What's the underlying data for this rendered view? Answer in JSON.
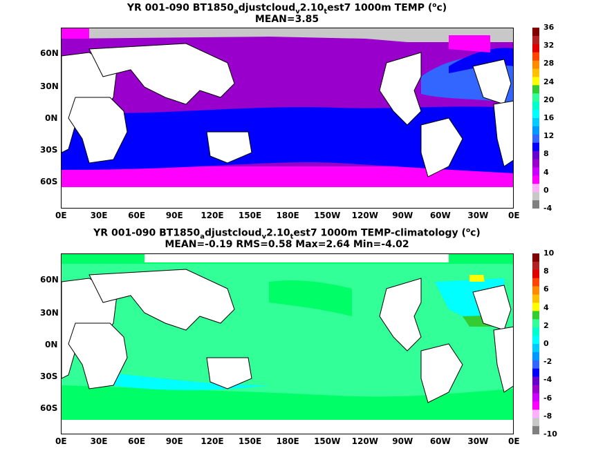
{
  "top": {
    "title_line1": {
      "pre": "YR 001-090 BT1850",
      "sub1": "a",
      "mid1": "djustcloud",
      "sub2": "v",
      "mid2": "2.10",
      "sub3": "t",
      "post": "est7 1000m TEMP (",
      "sup": "o",
      "end": "c)"
    },
    "title_line2": "MEAN=3.85",
    "lat_labels": [
      "60N",
      "30N",
      "0N",
      "30S",
      "60S"
    ],
    "lon_labels": [
      "0E",
      "30E",
      "60E",
      "90E",
      "120E",
      "150E",
      "180E",
      "150W",
      "120W",
      "90W",
      "60W",
      "30W",
      "0E"
    ],
    "colorbar_labels": [
      "36",
      "32",
      "28",
      "24",
      "20",
      "16",
      "12",
      "8",
      "4",
      "0",
      "-4"
    ]
  },
  "bottom": {
    "title_line1": {
      "pre": "YR 001-090 BT1850",
      "sub1": "a",
      "mid1": "djustcloud",
      "sub2": "v",
      "mid2": "2.10",
      "sub3": "t",
      "post": "est7 1000m TEMP-climatology (",
      "sup": "o",
      "end": "c)"
    },
    "title_line2": "MEAN=-0.19   RMS=0.58   Max=2.64   Min=-4.02",
    "lat_labels": [
      "60N",
      "30N",
      "0N",
      "30S",
      "60S"
    ],
    "lon_labels": [
      "0E",
      "30E",
      "60E",
      "90E",
      "120E",
      "150E",
      "180E",
      "150W",
      "120W",
      "90W",
      "60W",
      "30W",
      "0E"
    ],
    "colorbar_labels": [
      "10",
      "8",
      "6",
      "4",
      "2",
      "0",
      "-2",
      "-4",
      "-6",
      "-8",
      "-10"
    ]
  },
  "colors": {
    "land": "#ffffff",
    "ice": "#c8c8c8",
    "magenta": "#ff00ff",
    "purple": "#9900cc",
    "blue": "#0000ff",
    "mid_blue": "#3366ff",
    "light_blue": "#3399ff",
    "cyan": "#00ffff",
    "green_light": "#33ff99",
    "green": "#00ff66",
    "bright_green": "#33cc33",
    "yellow": "#ffff00",
    "colorbar_top": [
      "#800000",
      "#b22222",
      "#e00000",
      "#ff4500",
      "#ff8c00",
      "#ffc000",
      "#ffff00",
      "#33cc33",
      "#33ff99",
      "#00ffcc",
      "#00ffff",
      "#00ccff",
      "#0099ff",
      "#3366ff",
      "#0000ff",
      "#6600cc",
      "#9900cc",
      "#cc00ff",
      "#ff00ff",
      "#ffb0ff",
      "#c8c8c8",
      "#808080"
    ]
  }
}
